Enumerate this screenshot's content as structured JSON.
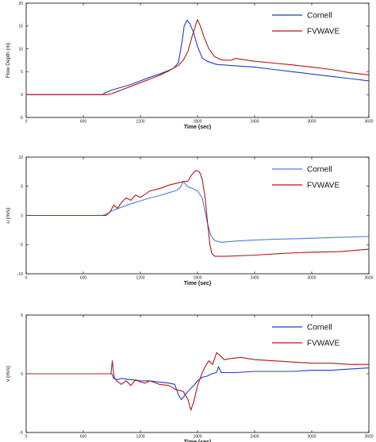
{
  "colors": {
    "cornell": "#1f3fbf",
    "fvwave": "#b01818",
    "axis": "#000000"
  },
  "chart_data": [
    {
      "type": "line",
      "xlabel": "Time (sec)",
      "ylabel": "Flow Depth (m)",
      "xlim": [
        0,
        3600
      ],
      "ylim": [
        -5,
        20
      ],
      "x_ticks": [
        0,
        600,
        1200,
        1800,
        2400,
        3000,
        3600
      ],
      "y_ticks": [
        -5,
        0,
        5,
        10,
        15,
        20
      ],
      "legend_position": "top-right",
      "series": [
        {
          "name": "Cornell",
          "color": "#1f3fbf",
          "points": [
            [
              0,
              0
            ],
            [
              800,
              0
            ],
            [
              830,
              0.4
            ],
            [
              900,
              1
            ],
            [
              1000,
              1.6
            ],
            [
              1100,
              2.2
            ],
            [
              1200,
              3
            ],
            [
              1300,
              3.8
            ],
            [
              1400,
              4.5
            ],
            [
              1500,
              5.3
            ],
            [
              1550,
              5.8
            ],
            [
              1600,
              7
            ],
            [
              1640,
              12
            ],
            [
              1660,
              15
            ],
            [
              1690,
              16.3
            ],
            [
              1720,
              15.5
            ],
            [
              1760,
              13.5
            ],
            [
              1800,
              10.5
            ],
            [
              1850,
              8
            ],
            [
              1900,
              7.3
            ],
            [
              2000,
              6.6
            ],
            [
              2200,
              6.3
            ],
            [
              2400,
              6
            ],
            [
              2600,
              5.5
            ],
            [
              2800,
              5
            ],
            [
              3000,
              4.5
            ],
            [
              3200,
              4
            ],
            [
              3400,
              3.5
            ],
            [
              3600,
              3
            ]
          ]
        },
        {
          "name": "FVWAVE",
          "color": "#b01818",
          "points": [
            [
              0,
              0
            ],
            [
              850,
              0
            ],
            [
              900,
              0.2
            ],
            [
              950,
              0.6
            ],
            [
              1000,
              1
            ],
            [
              1100,
              1.8
            ],
            [
              1200,
              2.6
            ],
            [
              1300,
              3.4
            ],
            [
              1400,
              4.2
            ],
            [
              1500,
              5.2
            ],
            [
              1600,
              6.4
            ],
            [
              1650,
              7.5
            ],
            [
              1700,
              9.5
            ],
            [
              1740,
              12.5
            ],
            [
              1780,
              15.2
            ],
            [
              1800,
              16.4
            ],
            [
              1830,
              15
            ],
            [
              1870,
              12.5
            ],
            [
              1920,
              10
            ],
            [
              1980,
              8.3
            ],
            [
              2050,
              7.6
            ],
            [
              2150,
              7.5
            ],
            [
              2200,
              7.9
            ],
            [
              2300,
              7.6
            ],
            [
              2400,
              7.3
            ],
            [
              2600,
              6.9
            ],
            [
              2800,
              6.5
            ],
            [
              3000,
              6
            ],
            [
              3200,
              5.5
            ],
            [
              3400,
              4.8
            ],
            [
              3600,
              4.3
            ]
          ]
        }
      ]
    },
    {
      "type": "line",
      "xlabel": "Time (sec)",
      "ylabel": "u (m/s)",
      "xlim": [
        0,
        3600
      ],
      "ylim": [
        -10,
        10
      ],
      "x_ticks": [
        0,
        600,
        1200,
        1800,
        2400,
        3000,
        3600
      ],
      "y_ticks": [
        -10,
        -5,
        0,
        5,
        10
      ],
      "legend_position": "top-right",
      "series": [
        {
          "name": "Cornell",
          "color": "#4f7ee0",
          "points": [
            [
              0,
              0
            ],
            [
              800,
              0
            ],
            [
              850,
              0.3
            ],
            [
              900,
              0.8
            ],
            [
              1000,
              1.4
            ],
            [
              1100,
              2
            ],
            [
              1200,
              2.5
            ],
            [
              1300,
              3
            ],
            [
              1400,
              3.4
            ],
            [
              1500,
              3.9
            ],
            [
              1580,
              4.3
            ],
            [
              1620,
              4.8
            ],
            [
              1650,
              5.8
            ],
            [
              1700,
              4.9
            ],
            [
              1750,
              4.6
            ],
            [
              1800,
              4.2
            ],
            [
              1850,
              3
            ],
            [
              1900,
              -1
            ],
            [
              1940,
              -3.5
            ],
            [
              1980,
              -4.3
            ],
            [
              2050,
              -4.6
            ],
            [
              2200,
              -4.4
            ],
            [
              2400,
              -4.2
            ],
            [
              2600,
              -4.1
            ],
            [
              2800,
              -4
            ],
            [
              3000,
              -3.9
            ],
            [
              3200,
              -3.8
            ],
            [
              3400,
              -3.7
            ],
            [
              3600,
              -3.6
            ]
          ]
        },
        {
          "name": "FVWAVE",
          "color": "#b01818",
          "points": [
            [
              0,
              0
            ],
            [
              840,
              0
            ],
            [
              880,
              0.6
            ],
            [
              920,
              1.8
            ],
            [
              960,
              1.2
            ],
            [
              1000,
              2.2
            ],
            [
              1050,
              3
            ],
            [
              1100,
              2.6
            ],
            [
              1150,
              3.5
            ],
            [
              1200,
              3.1
            ],
            [
              1300,
              4.2
            ],
            [
              1400,
              4.6
            ],
            [
              1500,
              5.2
            ],
            [
              1600,
              5.6
            ],
            [
              1650,
              5.8
            ],
            [
              1700,
              5.9
            ],
            [
              1740,
              7
            ],
            [
              1780,
              7.7
            ],
            [
              1820,
              7.5
            ],
            [
              1850,
              6.2
            ],
            [
              1880,
              3
            ],
            [
              1910,
              -2
            ],
            [
              1930,
              -5
            ],
            [
              1950,
              -6.5
            ],
            [
              1980,
              -7
            ],
            [
              2100,
              -7
            ],
            [
              2400,
              -6.8
            ],
            [
              2700,
              -6.5
            ],
            [
              3000,
              -6.3
            ],
            [
              3300,
              -6.2
            ],
            [
              3600,
              -5.8
            ]
          ]
        }
      ]
    },
    {
      "type": "line",
      "xlabel": "Time (sec)",
      "ylabel": "v (m/s)",
      "xlim": [
        0,
        3600
      ],
      "ylim": [
        -5,
        5
      ],
      "x_ticks": [
        0,
        600,
        1200,
        1800,
        2400,
        3000,
        3600
      ],
      "y_ticks": [
        -5,
        0,
        5
      ],
      "legend_position": "top-right",
      "series": [
        {
          "name": "Cornell",
          "color": "#1f3fbf",
          "points": [
            [
              0,
              0
            ],
            [
              900,
              0
            ],
            [
              920,
              -0.4
            ],
            [
              960,
              -0.5
            ],
            [
              1000,
              -0.4
            ],
            [
              1100,
              -0.5
            ],
            [
              1200,
              -0.6
            ],
            [
              1300,
              -0.6
            ],
            [
              1400,
              -0.7
            ],
            [
              1500,
              -0.8
            ],
            [
              1560,
              -0.9
            ],
            [
              1600,
              -1.8
            ],
            [
              1630,
              -2.2
            ],
            [
              1660,
              -1.9
            ],
            [
              1700,
              -1.5
            ],
            [
              1760,
              -1
            ],
            [
              1800,
              -0.6
            ],
            [
              1850,
              -0.3
            ],
            [
              1900,
              -0.2
            ],
            [
              1950,
              0
            ],
            [
              2000,
              0.1
            ],
            [
              2020,
              0.6
            ],
            [
              2050,
              0.1
            ],
            [
              2200,
              0.1
            ],
            [
              2400,
              0.2
            ],
            [
              2600,
              0.2
            ],
            [
              2800,
              0.2
            ],
            [
              3000,
              0.3
            ],
            [
              3200,
              0.3
            ],
            [
              3400,
              0.4
            ],
            [
              3600,
              0.5
            ]
          ]
        },
        {
          "name": "FVWAVE",
          "color": "#b01818",
          "points": [
            [
              0,
              0
            ],
            [
              890,
              0
            ],
            [
              905,
              1.1
            ],
            [
              915,
              0.3
            ],
            [
              925,
              -0.3
            ],
            [
              950,
              -0.6
            ],
            [
              1000,
              -0.9
            ],
            [
              1050,
              -0.6
            ],
            [
              1100,
              -1
            ],
            [
              1150,
              -0.5
            ],
            [
              1200,
              -0.7
            ],
            [
              1250,
              -0.8
            ],
            [
              1300,
              -0.6
            ],
            [
              1400,
              -0.9
            ],
            [
              1500,
              -1
            ],
            [
              1560,
              -1.3
            ],
            [
              1600,
              -1.4
            ],
            [
              1650,
              -1.5
            ],
            [
              1700,
              -2.2
            ],
            [
              1730,
              -3.1
            ],
            [
              1760,
              -2.4
            ],
            [
              1800,
              -1
            ],
            [
              1850,
              0.1
            ],
            [
              1880,
              0.6
            ],
            [
              1920,
              1.1
            ],
            [
              1960,
              0.8
            ],
            [
              2000,
              1.8
            ],
            [
              2030,
              1.6
            ],
            [
              2080,
              1.2
            ],
            [
              2150,
              1.3
            ],
            [
              2250,
              1.4
            ],
            [
              2400,
              1.2
            ],
            [
              2600,
              1.1
            ],
            [
              2800,
              1
            ],
            [
              3000,
              0.9
            ],
            [
              3200,
              0.9
            ],
            [
              3400,
              0.8
            ],
            [
              3600,
              0.8
            ]
          ]
        }
      ]
    }
  ]
}
